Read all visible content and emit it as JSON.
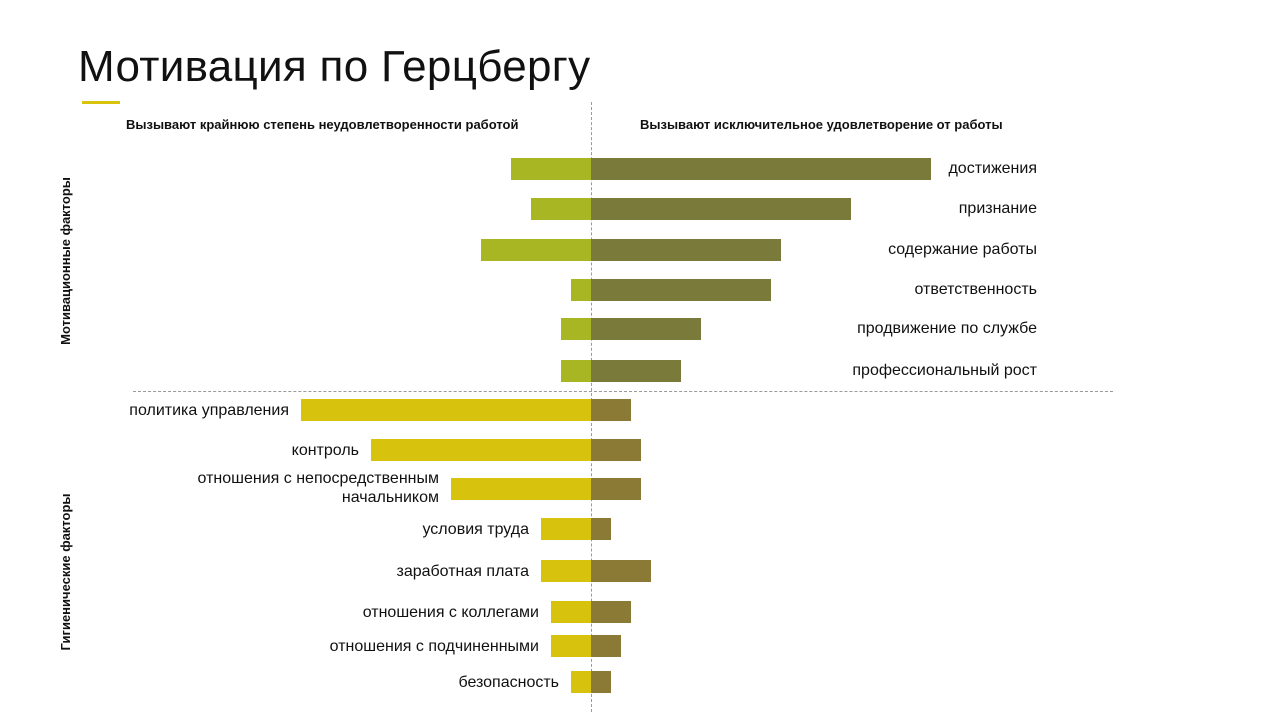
{
  "slide": {
    "title": "Мотивация по Герцбергу",
    "left_heading": "Вызывают крайнюю степень неудовлетворенности работой",
    "right_heading": "Вызывают исключительное удовлетворение от работы",
    "group_motivation": "Мотивационные факторы",
    "group_hygiene": "Гигиенические факторы"
  },
  "colors": {
    "motivation_left": "#a8b624",
    "motivation_right": "#7a7a3a",
    "hygiene_left": "#d7c20e",
    "hygiene_right": "#8a7a35"
  },
  "chart_data": {
    "type": "bar",
    "orientation": "horizontal-diverging",
    "title": "Мотивация по Герцбергу",
    "series": [
      {
        "name": "Вызывают крайнюю степень неудовлетворенности работой",
        "direction": "left"
      },
      {
        "name": "Вызывают исключительное удовлетворение от работы",
        "direction": "right"
      }
    ],
    "categories": [
      {
        "label": "достижения",
        "group": "motivation",
        "left": 8,
        "right": 34
      },
      {
        "label": "признание",
        "group": "motivation",
        "left": 6,
        "right": 26
      },
      {
        "label": "содержание работы",
        "group": "motivation",
        "left": 11,
        "right": 19
      },
      {
        "label": "ответственность",
        "group": "motivation",
        "left": 2,
        "right": 18
      },
      {
        "label": "продвижение по службе",
        "group": "motivation",
        "left": 3,
        "right": 11
      },
      {
        "label": "профессиональный рост",
        "group": "motivation",
        "left": 3,
        "right": 9
      },
      {
        "label": "политика управления",
        "group": "hygiene",
        "left": 29,
        "right": 4
      },
      {
        "label": "контроль",
        "group": "hygiene",
        "left": 22,
        "right": 5
      },
      {
        "label": "отношения с непосредственным начальником",
        "label_lines": [
          "отношения с непосредственным",
          "начальником"
        ],
        "group": "hygiene",
        "left": 14,
        "right": 5
      },
      {
        "label": "условия труда",
        "group": "hygiene",
        "left": 5,
        "right": 2
      },
      {
        "label": "заработная плата",
        "group": "hygiene",
        "left": 5,
        "right": 6
      },
      {
        "label": "отношения с коллегами",
        "group": "hygiene",
        "left": 4,
        "right": 4
      },
      {
        "label": "отношения с подчиненными",
        "group": "hygiene",
        "left": 4,
        "right": 3
      },
      {
        "label": "безопасность",
        "group": "hygiene",
        "left": 2,
        "right": 2
      }
    ]
  }
}
